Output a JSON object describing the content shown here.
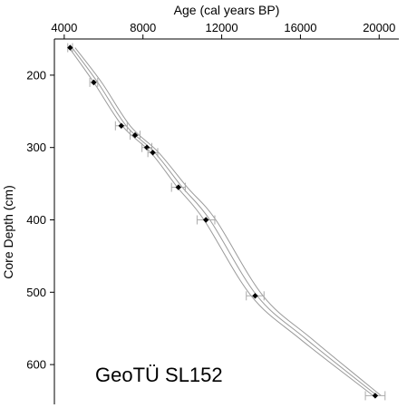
{
  "chart_data": {
    "type": "scatter",
    "title": "",
    "xlabel": "Age (cal years BP)",
    "ylabel": "Core Depth (cm)",
    "xlim": [
      3500,
      21000
    ],
    "ylim": [
      150,
      655
    ],
    "x_axis_position": "top",
    "y_axis_inverted": true,
    "grid": false,
    "x_ticks": [
      4000,
      8000,
      12000,
      16000,
      20000
    ],
    "y_ticks": [
      200,
      300,
      400,
      500,
      600
    ],
    "annotation": "GeoTÜ SL152",
    "series": [
      {
        "type": "scatter",
        "marker": "diamond",
        "color": "#000000",
        "points": [
          {
            "x": 4300,
            "y": 162,
            "err": 120
          },
          {
            "x": 5500,
            "y": 210,
            "err": 200
          },
          {
            "x": 6900,
            "y": 270,
            "err": 300
          },
          {
            "x": 7600,
            "y": 283,
            "err": 250
          },
          {
            "x": 8200,
            "y": 300,
            "err": 250
          },
          {
            "x": 8500,
            "y": 307,
            "err": 250
          },
          {
            "x": 9800,
            "y": 355,
            "err": 350
          },
          {
            "x": 11200,
            "y": 400,
            "err": 450
          },
          {
            "x": 13700,
            "y": 505,
            "err": 450
          },
          {
            "x": 19800,
            "y": 643,
            "err": 500
          }
        ]
      },
      {
        "type": "line",
        "color": "#9a9a9a",
        "points": [
          {
            "x": 4250,
            "y": 162
          },
          {
            "x": 5500,
            "y": 210
          },
          {
            "x": 6950,
            "y": 270
          },
          {
            "x": 8400,
            "y": 307
          },
          {
            "x": 9750,
            "y": 355
          },
          {
            "x": 11100,
            "y": 400
          },
          {
            "x": 13500,
            "y": 505
          },
          {
            "x": 16000,
            "y": 565
          },
          {
            "x": 19700,
            "y": 643
          }
        ]
      },
      {
        "type": "line",
        "color": "#9a9a9a",
        "points": [
          {
            "x": 4400,
            "y": 162
          },
          {
            "x": 5700,
            "y": 210
          },
          {
            "x": 7150,
            "y": 270
          },
          {
            "x": 8600,
            "y": 307
          },
          {
            "x": 10000,
            "y": 355
          },
          {
            "x": 11400,
            "y": 400
          },
          {
            "x": 13800,
            "y": 505
          },
          {
            "x": 16300,
            "y": 565
          },
          {
            "x": 19900,
            "y": 643
          }
        ]
      },
      {
        "type": "line",
        "color": "#9a9a9a",
        "points": [
          {
            "x": 4550,
            "y": 162
          },
          {
            "x": 5900,
            "y": 210
          },
          {
            "x": 7350,
            "y": 270
          },
          {
            "x": 8800,
            "y": 307
          },
          {
            "x": 10250,
            "y": 355
          },
          {
            "x": 11700,
            "y": 400
          },
          {
            "x": 14100,
            "y": 505
          },
          {
            "x": 16600,
            "y": 565
          },
          {
            "x": 20100,
            "y": 643
          }
        ]
      }
    ]
  }
}
